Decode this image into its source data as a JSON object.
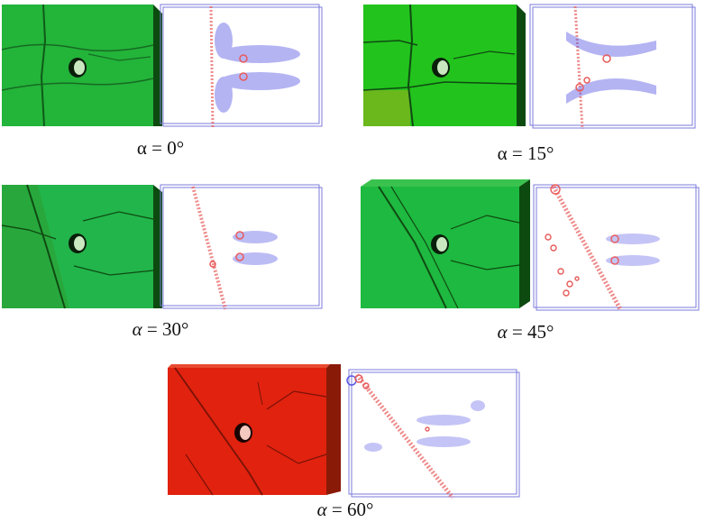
{
  "panels": [
    {
      "id": "p0",
      "alpha_symbol": "α",
      "equals": " = ",
      "angle": "0°",
      "specimen_color": "#23b43a",
      "italic": false
    },
    {
      "id": "p15",
      "alpha_symbol": "α",
      "equals": " = ",
      "angle": "15°",
      "specimen_color": "#22c31d",
      "italic": false
    },
    {
      "id": "p30",
      "alpha_symbol": "α",
      "equals": " = ",
      "angle": "30°",
      "specimen_color": "#22b54b",
      "italic": true
    },
    {
      "id": "p45",
      "alpha_symbol": "α",
      "equals": " = ",
      "angle": "45°",
      "specimen_color": "#1eb940",
      "italic": true
    },
    {
      "id": "p60",
      "alpha_symbol": "α",
      "equals": " = ",
      "angle": "60°",
      "specimen_color": "#e0220f",
      "italic": true
    }
  ],
  "colors": {
    "frame": "#7b7bdc",
    "tensile_cracks": "#5a5ae6",
    "shear_cracks": "#e85a5a"
  }
}
